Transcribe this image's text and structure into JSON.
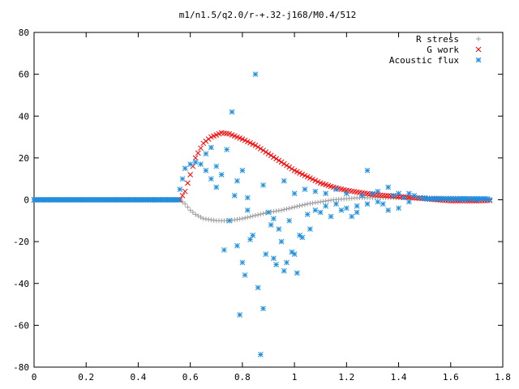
{
  "chart_data": {
    "type": "scatter",
    "title": "m1/n1.5/q2.0/r-+.32-j168/M0.4/512",
    "xlabel": "",
    "ylabel": "",
    "xlim": [
      0,
      1.8
    ],
    "ylim": [
      -80,
      80
    ],
    "x_ticks": [
      0,
      0.2,
      0.4,
      0.6,
      0.8,
      1,
      1.2,
      1.4,
      1.6,
      1.8
    ],
    "y_ticks": [
      -80,
      -60,
      -40,
      -20,
      0,
      20,
      40,
      60,
      80
    ],
    "x_tick_labels": [
      "0",
      "0.2",
      "0.4",
      "0.6",
      "0.8",
      "1",
      "1.2",
      "1.4",
      "1.6",
      "1.8"
    ],
    "y_tick_labels": [
      "-80",
      "-60",
      "-40",
      "-20",
      "0",
      "20",
      "40",
      "60",
      "80"
    ],
    "grid": false,
    "legend_position": "top-right",
    "series": [
      {
        "name": "R stress",
        "marker": "+",
        "color": "#a0a0a0",
        "points": [
          [
            0.0,
            0
          ],
          [
            0.1,
            0
          ],
          [
            0.2,
            0
          ],
          [
            0.3,
            0
          ],
          [
            0.4,
            0
          ],
          [
            0.5,
            0
          ],
          [
            0.56,
            0
          ],
          [
            0.58,
            -2
          ],
          [
            0.6,
            -5
          ],
          [
            0.62,
            -7
          ],
          [
            0.65,
            -9
          ],
          [
            0.7,
            -10
          ],
          [
            0.75,
            -10
          ],
          [
            0.8,
            -9
          ],
          [
            0.85,
            -7.5
          ],
          [
            0.9,
            -6
          ],
          [
            0.95,
            -5
          ],
          [
            1.0,
            -3.5
          ],
          [
            1.05,
            -2
          ],
          [
            1.1,
            -1
          ],
          [
            1.15,
            0
          ],
          [
            1.2,
            0.5
          ],
          [
            1.25,
            1
          ],
          [
            1.3,
            1
          ],
          [
            1.35,
            1
          ],
          [
            1.4,
            1
          ],
          [
            1.45,
            1
          ],
          [
            1.5,
            1
          ],
          [
            1.6,
            0.8
          ],
          [
            1.7,
            0.5
          ],
          [
            1.75,
            0.3
          ]
        ]
      },
      {
        "name": "G work",
        "marker": "x",
        "color": "#ff0000",
        "points": [
          [
            0.0,
            0
          ],
          [
            0.2,
            0
          ],
          [
            0.4,
            0
          ],
          [
            0.56,
            0
          ],
          [
            0.58,
            4
          ],
          [
            0.6,
            12
          ],
          [
            0.62,
            20
          ],
          [
            0.65,
            27
          ],
          [
            0.68,
            30
          ],
          [
            0.7,
            31
          ],
          [
            0.72,
            32
          ],
          [
            0.75,
            31.5
          ],
          [
            0.78,
            30
          ],
          [
            0.8,
            29
          ],
          [
            0.85,
            26
          ],
          [
            0.9,
            22
          ],
          [
            0.95,
            18
          ],
          [
            1.0,
            14
          ],
          [
            1.05,
            11
          ],
          [
            1.1,
            8
          ],
          [
            1.15,
            6
          ],
          [
            1.2,
            4.5
          ],
          [
            1.25,
            3.5
          ],
          [
            1.3,
            2.5
          ],
          [
            1.35,
            2
          ],
          [
            1.4,
            1.5
          ],
          [
            1.45,
            1
          ],
          [
            1.5,
            0.5
          ],
          [
            1.55,
            0
          ],
          [
            1.6,
            -0.5
          ],
          [
            1.7,
            -0.5
          ],
          [
            1.75,
            -0.3
          ]
        ]
      },
      {
        "name": "Acoustic flux",
        "marker": "*",
        "color": "#1f8fe0",
        "points": [
          [
            0.0,
            0
          ],
          [
            0.05,
            0
          ],
          [
            0.1,
            0
          ],
          [
            0.15,
            0
          ],
          [
            0.2,
            0
          ],
          [
            0.25,
            0
          ],
          [
            0.3,
            0
          ],
          [
            0.35,
            0
          ],
          [
            0.4,
            0
          ],
          [
            0.45,
            0
          ],
          [
            0.5,
            0
          ],
          [
            0.55,
            0
          ],
          [
            0.56,
            5
          ],
          [
            0.57,
            10
          ],
          [
            0.58,
            15
          ],
          [
            0.6,
            17
          ],
          [
            0.62,
            18
          ],
          [
            0.64,
            17
          ],
          [
            0.66,
            14
          ],
          [
            0.68,
            10
          ],
          [
            0.7,
            6
          ],
          [
            0.66,
            22
          ],
          [
            0.68,
            25
          ],
          [
            0.7,
            16
          ],
          [
            0.72,
            12
          ],
          [
            0.73,
            -24
          ],
          [
            0.75,
            -10
          ],
          [
            0.76,
            42
          ],
          [
            0.77,
            2
          ],
          [
            0.78,
            -22
          ],
          [
            0.79,
            -55
          ],
          [
            0.8,
            -30
          ],
          [
            0.81,
            -36
          ],
          [
            0.82,
            -5
          ],
          [
            0.83,
            -19
          ],
          [
            0.84,
            -17
          ],
          [
            0.85,
            60
          ],
          [
            0.86,
            -42
          ],
          [
            0.87,
            -74
          ],
          [
            0.88,
            -52
          ],
          [
            0.89,
            -26
          ],
          [
            0.9,
            -6
          ],
          [
            0.91,
            -12
          ],
          [
            0.92,
            -28
          ],
          [
            0.93,
            -31
          ],
          [
            0.94,
            -14
          ],
          [
            0.95,
            -20
          ],
          [
            0.96,
            -34
          ],
          [
            0.97,
            -30
          ],
          [
            0.98,
            -10
          ],
          [
            0.99,
            -25
          ],
          [
            1.0,
            -26
          ],
          [
            1.01,
            -35
          ],
          [
            1.02,
            -17
          ],
          [
            1.03,
            -18
          ],
          [
            1.05,
            -7
          ],
          [
            1.06,
            -14
          ],
          [
            1.08,
            -5
          ],
          [
            1.1,
            -6
          ],
          [
            1.12,
            -3
          ],
          [
            1.14,
            -8
          ],
          [
            1.16,
            -2
          ],
          [
            1.18,
            -5
          ],
          [
            1.2,
            -4
          ],
          [
            1.22,
            -8
          ],
          [
            1.24,
            -3
          ],
          [
            1.26,
            2
          ],
          [
            1.28,
            14
          ],
          [
            1.3,
            3
          ],
          [
            1.32,
            -1
          ],
          [
            1.34,
            -2
          ],
          [
            1.36,
            6
          ],
          [
            1.38,
            2
          ],
          [
            1.4,
            -4
          ],
          [
            1.42,
            1
          ],
          [
            1.44,
            3
          ],
          [
            1.46,
            2
          ],
          [
            1.48,
            1
          ],
          [
            1.5,
            1
          ],
          [
            1.55,
            0.5
          ],
          [
            1.6,
            0.5
          ],
          [
            1.65,
            0
          ],
          [
            1.7,
            0
          ],
          [
            1.75,
            0
          ],
          [
            0.74,
            24
          ],
          [
            0.78,
            9
          ],
          [
            0.8,
            14
          ],
          [
            0.82,
            1
          ],
          [
            0.88,
            7
          ],
          [
            0.92,
            -9
          ],
          [
            0.96,
            9
          ],
          [
            1.0,
            3
          ],
          [
            1.04,
            5
          ],
          [
            1.08,
            4
          ],
          [
            1.12,
            3
          ],
          [
            1.16,
            5
          ],
          [
            1.2,
            3
          ],
          [
            1.24,
            -6
          ],
          [
            1.28,
            -2
          ],
          [
            1.32,
            4
          ],
          [
            1.36,
            -5
          ],
          [
            1.4,
            3
          ],
          [
            1.44,
            -1
          ]
        ]
      }
    ]
  }
}
